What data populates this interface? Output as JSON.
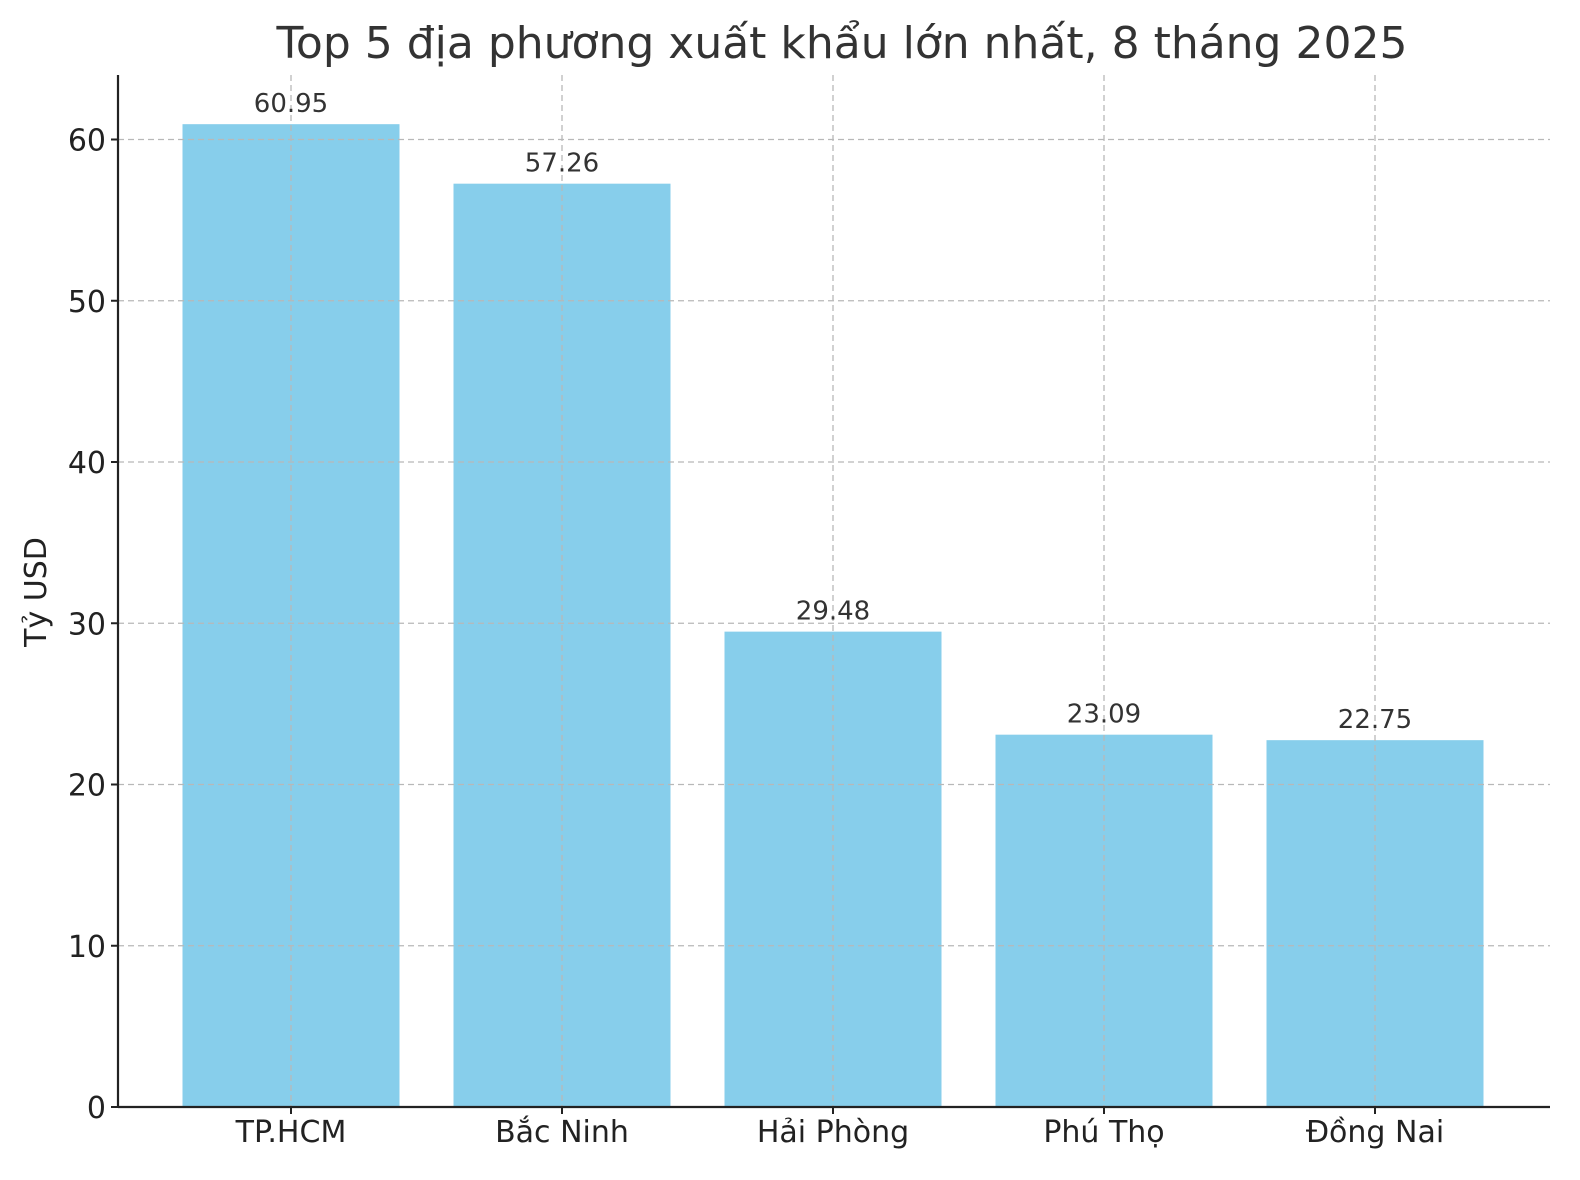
{
  "chart_data": {
    "type": "bar",
    "title": "Top 5 địa phương xuất khẩu lớn nhất, 8 tháng 2025",
    "xlabel": "",
    "ylabel": "Tỷ USD",
    "categories": [
      "TP.HCM",
      "Bắc Ninh",
      "Hải Phòng",
      "Phú Thọ",
      "Đồng Nai"
    ],
    "values": [
      60.95,
      57.26,
      29.48,
      23.09,
      22.75
    ],
    "value_labels": [
      "60.95",
      "57.26",
      "29.48",
      "23.09",
      "22.75"
    ],
    "ylim": [
      0,
      64
    ],
    "yticks": [
      0,
      10,
      20,
      30,
      40,
      50,
      60
    ],
    "ytick_labels": [
      "0",
      "10",
      "20",
      "30",
      "40",
      "50",
      "60"
    ],
    "grid": true,
    "legend": "none",
    "colors": {
      "bar": "#87CEEB",
      "grid": "#b8b8b8",
      "axis": "#222222",
      "text": "#333333"
    }
  }
}
